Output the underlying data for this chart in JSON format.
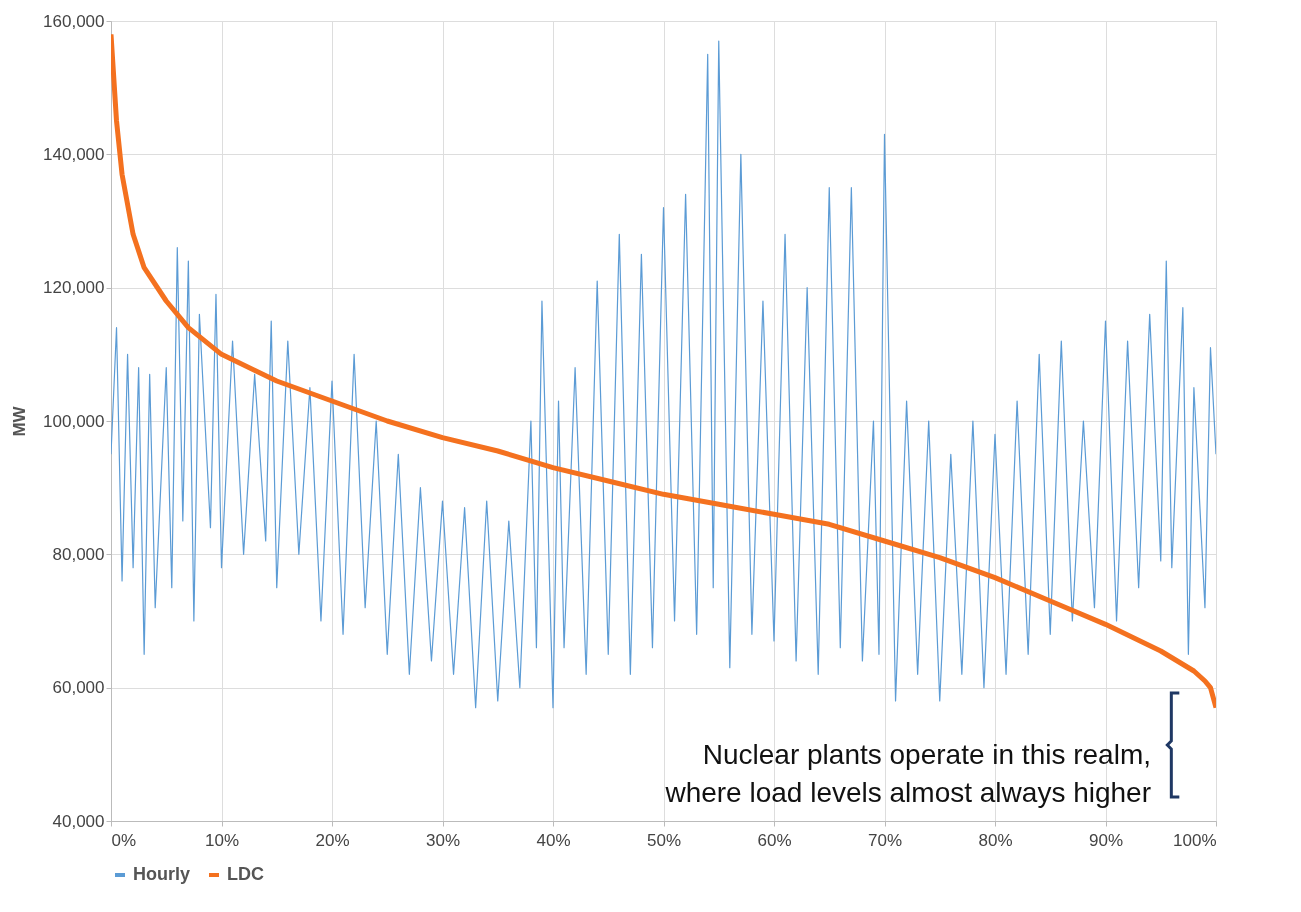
{
  "chart_data": {
    "type": "line",
    "ylabel": "MW",
    "xlim": [
      0,
      100
    ],
    "ylim": [
      40000,
      160000
    ],
    "xticks": [
      {
        "value": 0,
        "label": "0%"
      },
      {
        "value": 10,
        "label": "10%"
      },
      {
        "value": 20,
        "label": "20%"
      },
      {
        "value": 30,
        "label": "30%"
      },
      {
        "value": 40,
        "label": "40%"
      },
      {
        "value": 50,
        "label": "50%"
      },
      {
        "value": 60,
        "label": "60%"
      },
      {
        "value": 70,
        "label": "70%"
      },
      {
        "value": 80,
        "label": "80%"
      },
      {
        "value": 90,
        "label": "90%"
      },
      {
        "value": 100,
        "label": "100%"
      }
    ],
    "yticks": [
      {
        "value": 40000,
        "label": "40,000"
      },
      {
        "value": 60000,
        "label": "60,000"
      },
      {
        "value": 80000,
        "label": "80,000"
      },
      {
        "value": 100000,
        "label": "100,000"
      },
      {
        "value": 120000,
        "label": "120,000"
      },
      {
        "value": 140000,
        "label": "140,000"
      },
      {
        "value": 160000,
        "label": "160,000"
      }
    ],
    "grid": true,
    "legend": "bottom",
    "marker": "none",
    "annotations": [
      "Nuclear plants operate in this realm,\n where load levels almost always higher"
    ],
    "series": [
      {
        "name": "Hourly",
        "color": "#5b9bd5",
        "x": [
          0,
          0.5,
          1,
          1.5,
          2,
          2.5,
          3,
          3.5,
          4,
          5,
          5.5,
          6,
          6.5,
          7,
          7.5,
          8,
          9,
          9.5,
          10,
          11,
          12,
          13,
          14,
          14.5,
          15,
          16,
          17,
          18,
          19,
          20,
          21,
          22,
          23,
          24,
          25,
          26,
          27,
          28,
          29,
          30,
          31,
          32,
          33,
          34,
          35,
          36,
          37,
          38,
          38.5,
          39,
          40,
          40.5,
          41,
          42,
          43,
          44,
          45,
          46,
          47,
          48,
          49,
          50,
          51,
          52,
          53,
          54,
          54.5,
          55,
          56,
          57,
          58,
          59,
          60,
          61,
          62,
          63,
          64,
          65,
          66,
          67,
          68,
          69,
          69.5,
          70,
          71,
          72,
          73,
          74,
          75,
          76,
          77,
          78,
          79,
          80,
          81,
          82,
          83,
          84,
          85,
          86,
          87,
          88,
          89,
          90,
          91,
          92,
          93,
          94,
          95,
          95.5,
          96,
          97,
          97.5,
          98,
          99,
          99.5,
          100
        ],
        "values": [
          95000,
          114000,
          76000,
          110000,
          78000,
          108000,
          65000,
          107000,
          72000,
          108000,
          75000,
          126000,
          85000,
          124000,
          70000,
          116000,
          84000,
          119000,
          78000,
          112000,
          80000,
          107000,
          82000,
          115000,
          75000,
          112000,
          80000,
          105000,
          70000,
          106000,
          68000,
          110000,
          72000,
          100000,
          65000,
          95000,
          62000,
          90000,
          64000,
          88000,
          62000,
          87000,
          57000,
          88000,
          58000,
          85000,
          60000,
          100000,
          66000,
          118000,
          57000,
          103000,
          66000,
          108000,
          62000,
          121000,
          65000,
          128000,
          62000,
          125000,
          66000,
          132000,
          70000,
          134000,
          68000,
          155000,
          75000,
          157000,
          63000,
          140000,
          68000,
          118000,
          67000,
          128000,
          64000,
          120000,
          62000,
          135000,
          66000,
          135000,
          64000,
          100000,
          65000,
          143000,
          58000,
          103000,
          62000,
          100000,
          58000,
          95000,
          62000,
          100000,
          60000,
          98000,
          62000,
          103000,
          65000,
          110000,
          68000,
          112000,
          70000,
          100000,
          72000,
          115000,
          70000,
          112000,
          75000,
          116000,
          79000,
          124000,
          78000,
          117000,
          65000,
          105000,
          72000,
          111000,
          95000
        ]
      },
      {
        "name": "LDC",
        "color": "#f4711f",
        "x": [
          0,
          0.5,
          1,
          2,
          3,
          5,
          7,
          10,
          15,
          20,
          25,
          30,
          35,
          40,
          45,
          50,
          55,
          60,
          65,
          70,
          75,
          80,
          85,
          90,
          95,
          98,
          99,
          99.5,
          100
        ],
        "values": [
          158000,
          145000,
          137000,
          128000,
          123000,
          118000,
          114000,
          110000,
          106000,
          103000,
          100000,
          97500,
          95500,
          93000,
          91000,
          89000,
          87500,
          86000,
          84500,
          82000,
          79500,
          76500,
          73000,
          69500,
          65500,
          62500,
          61000,
          60000,
          57000
        ]
      }
    ]
  }
}
